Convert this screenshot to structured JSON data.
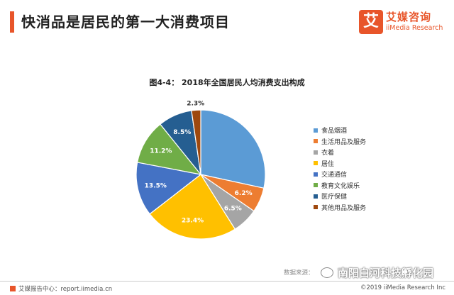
{
  "header": {
    "title": "快消品是居民的第一大消费项目",
    "accent_color": "#e8552a"
  },
  "logo": {
    "mark": "艾",
    "name_cn": "艾媒咨询",
    "name_en": "iiMedia Research"
  },
  "chart_data": {
    "type": "pie",
    "title": "图4-4：  2018年全国居民人均消费支出构成",
    "legend_position": "right",
    "slices": [
      {
        "name": "食品烟酒",
        "value": 28.4,
        "label": "",
        "color": "#5b9bd5"
      },
      {
        "name": "生活用品及服务",
        "value": 6.2,
        "label": "6.2%",
        "color": "#ed7d31"
      },
      {
        "name": "衣着",
        "value": 6.5,
        "label": "6.5%",
        "color": "#a5a5a5"
      },
      {
        "name": "居住",
        "value": 23.4,
        "label": "23.4%",
        "color": "#ffc000"
      },
      {
        "name": "交通通信",
        "value": 13.5,
        "label": "13.5%",
        "color": "#4472c4"
      },
      {
        "name": "教育文化娱乐",
        "value": 11.2,
        "label": "11.2%",
        "color": "#70ad47"
      },
      {
        "name": "医疗保健",
        "value": 8.5,
        "label": "8.5%",
        "color": "#255e91"
      },
      {
        "name": "其他用品及服务",
        "value": 2.3,
        "label": "2.3%",
        "color": "#9e480e"
      }
    ]
  },
  "source": "数据来源：",
  "watermark": "南阳白河科技孵化园",
  "footer": {
    "left": "艾媒报告中心：report.iimedia.cn",
    "right": "©2019  iiMedia Research  Inc"
  }
}
